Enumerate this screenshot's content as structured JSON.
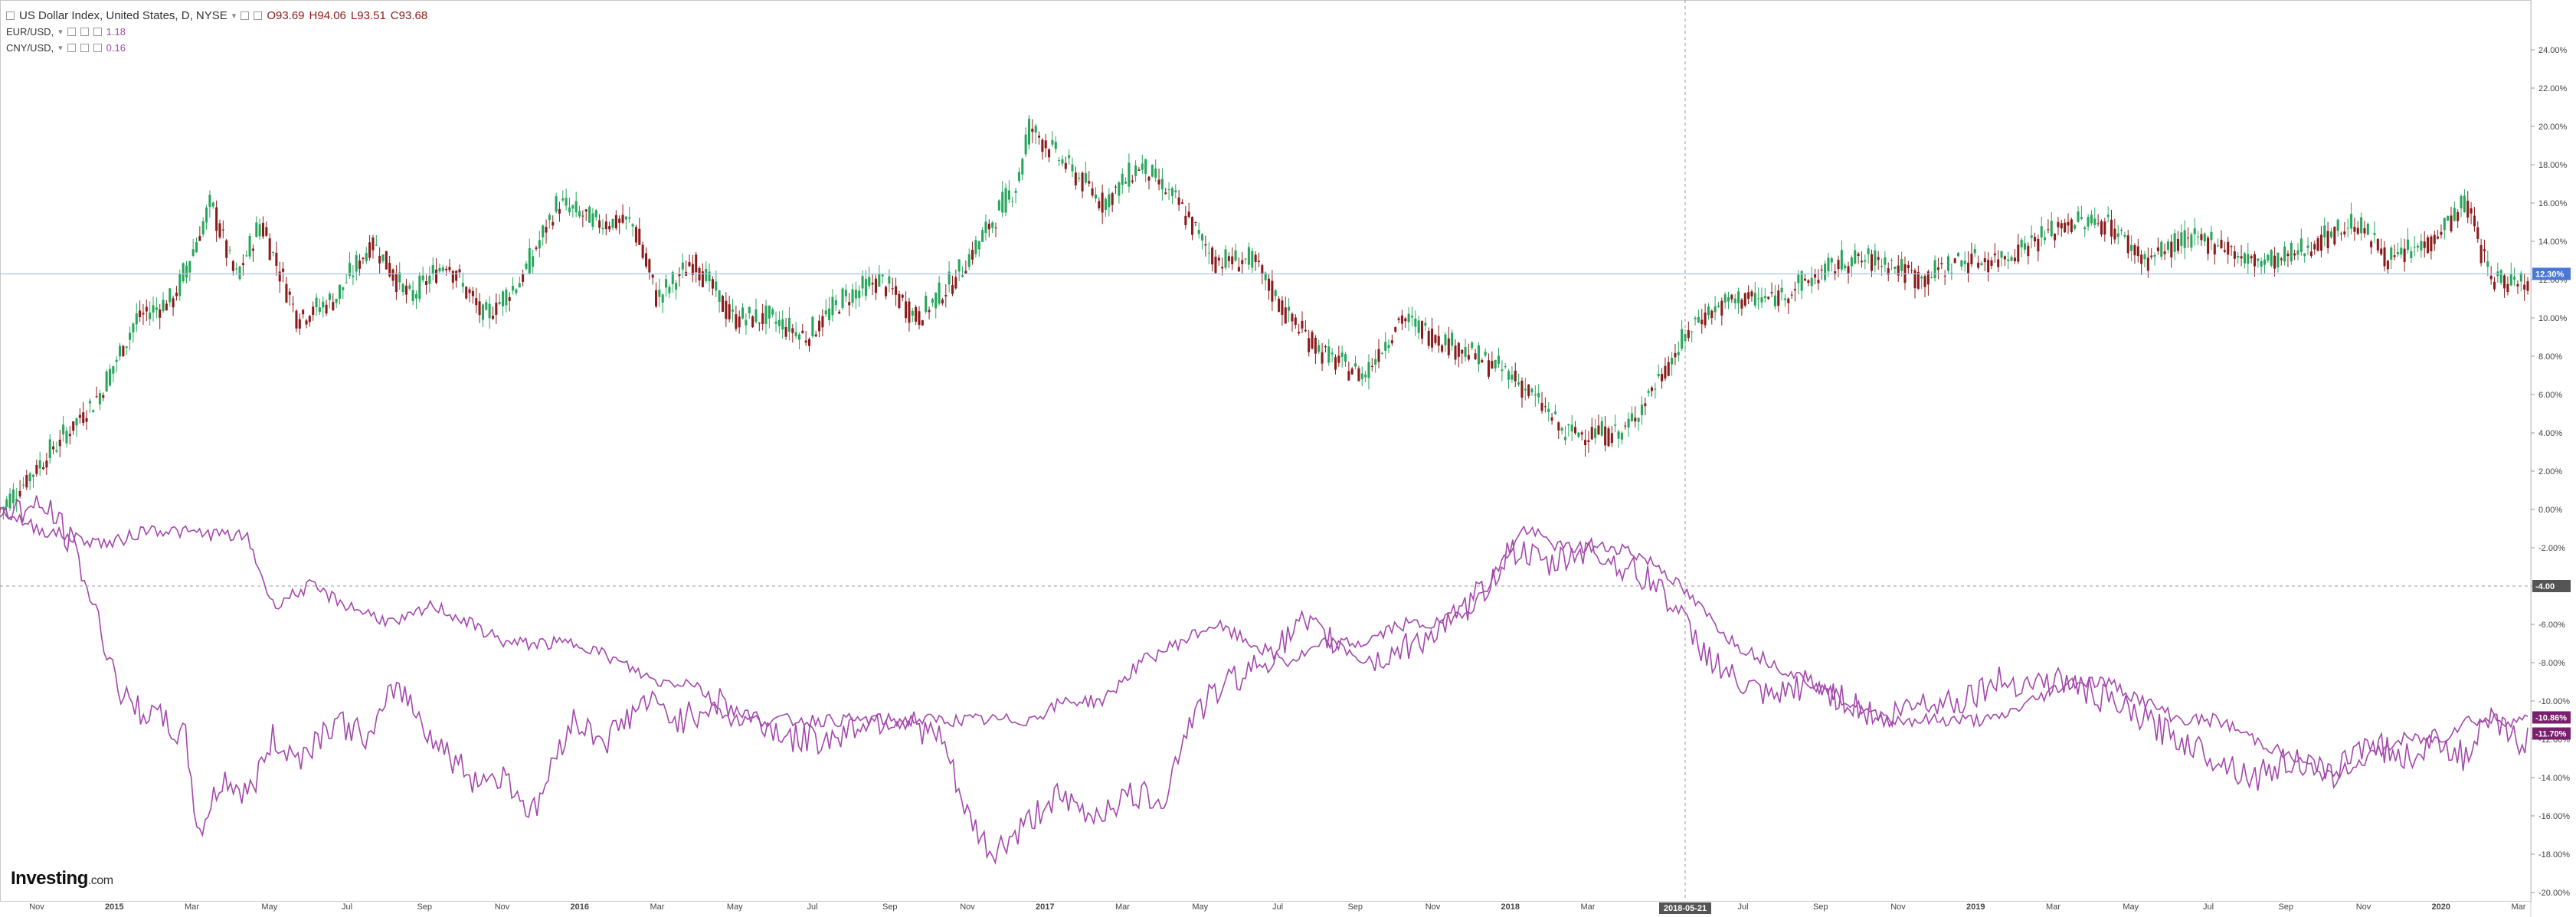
{
  "legend": {
    "main": {
      "symbol": "US Dollar Index, United States, D, NYSE",
      "open": "O93.69",
      "high": "H94.06",
      "low": "L93.51",
      "close": "C93.68"
    },
    "eur": {
      "symbol": "EUR/USD,",
      "value": "1.18"
    },
    "cny": {
      "symbol": "CNY/USD,",
      "value": "0.16"
    }
  },
  "brand": {
    "name": "Investing",
    "suffix": ".com"
  },
  "crosshair": {
    "date_label": "2018-05-21",
    "value_label": "-4.00"
  },
  "colors": {
    "up": "#26a65b",
    "down": "#8b1a1a",
    "purple": "#a447ad",
    "last_price_line": "#a9c5e6",
    "last_price_badge": "#4a78d4",
    "pct_badge": "#7a1f6e",
    "crosshair_badge": "#555555"
  },
  "chart_data": {
    "type": "line",
    "x_axis": {
      "tick_labels": [
        "Nov",
        "2015",
        "Mar",
        "May",
        "Jul",
        "Sep",
        "Nov",
        "2016",
        "Mar",
        "May",
        "Jul",
        "Sep",
        "Nov",
        "2017",
        "Mar",
        "May",
        "Jul",
        "Sep",
        "Nov",
        "2018",
        "Mar",
        "M",
        "Jul",
        "Sep",
        "Nov",
        "2019",
        "Mar",
        "May",
        "Jul",
        "Sep",
        "Nov",
        "2020",
        "Mar"
      ],
      "bold_labels": [
        "2015",
        "2016",
        "2017",
        "2018",
        "2019",
        "2020"
      ]
    },
    "y_axis": {
      "unit": "%",
      "range": [
        -20,
        24
      ],
      "tick_labels": [
        "24.00%",
        "22.00%",
        "20.00%",
        "18.00%",
        "16.00%",
        "14.00%",
        "12.00%",
        "10.00%",
        "8.00%",
        "6.00%",
        "4.00%",
        "2.00%",
        "0.00%",
        "-2.00%",
        "-4.00%",
        "-6.00%",
        "-8.00%",
        "-10.00%",
        "-12.00%",
        "-14.00%",
        "-16.00%",
        "-18.00%",
        "-20.00%"
      ],
      "tick_values": [
        24,
        22,
        20,
        18,
        16,
        14,
        12,
        10,
        8,
        6,
        4,
        2,
        0,
        -2,
        -4,
        -6,
        -8,
        -10,
        -12,
        -14,
        -16,
        -18,
        -20
      ]
    },
    "grid": false,
    "series": [
      {
        "name": "US Dollar Index, United States, D, NYSE",
        "style": "candlestick",
        "last_label": "12.30%",
        "points": [
          [
            0,
            0
          ],
          [
            4,
            3
          ],
          [
            8,
            6
          ],
          [
            11,
            10
          ],
          [
            14,
            11
          ],
          [
            17,
            16
          ],
          [
            19,
            12
          ],
          [
            21,
            15
          ],
          [
            24,
            10
          ],
          [
            27,
            11
          ],
          [
            30,
            14
          ],
          [
            33,
            11
          ],
          [
            36,
            13
          ],
          [
            39,
            10
          ],
          [
            42,
            12
          ],
          [
            45,
            16
          ],
          [
            48,
            15
          ],
          [
            51,
            15
          ],
          [
            53,
            11
          ],
          [
            56,
            13
          ],
          [
            59,
            10
          ],
          [
            62,
            10
          ],
          [
            65,
            9
          ],
          [
            68,
            11
          ],
          [
            71,
            12
          ],
          [
            74,
            10
          ],
          [
            77,
            12
          ],
          [
            80,
            15
          ],
          [
            82,
            17
          ],
          [
            83,
            20
          ],
          [
            86,
            18
          ],
          [
            89,
            16
          ],
          [
            92,
            18
          ],
          [
            95,
            16
          ],
          [
            98,
            13
          ],
          [
            101,
            13
          ],
          [
            104,
            10
          ],
          [
            107,
            8
          ],
          [
            110,
            7
          ],
          [
            113,
            10
          ],
          [
            116,
            9
          ],
          [
            119,
            8
          ],
          [
            122,
            7
          ],
          [
            125,
            5
          ],
          [
            126,
            4
          ],
          [
            128,
            4
          ],
          [
            131,
            4
          ],
          [
            134,
            7
          ],
          [
            137,
            10
          ],
          [
            140,
            11
          ],
          [
            143,
            11
          ],
          [
            146,
            12
          ],
          [
            149,
            13
          ],
          [
            152,
            13
          ],
          [
            155,
            12
          ],
          [
            158,
            13
          ],
          [
            161,
            13
          ],
          [
            164,
            14
          ],
          [
            167,
            15
          ],
          [
            170,
            15
          ],
          [
            173,
            13
          ],
          [
            176,
            14
          ],
          [
            179,
            14
          ],
          [
            181,
            13
          ],
          [
            184,
            13
          ],
          [
            187,
            14
          ],
          [
            190,
            15
          ],
          [
            193,
            13
          ],
          [
            196,
            14
          ],
          [
            199,
            16
          ],
          [
            201,
            12
          ],
          [
            203,
            12
          ]
        ]
      },
      {
        "name": "EUR/USD",
        "style": "line",
        "last_label": "-10.86%",
        "points": [
          [
            0,
            0
          ],
          [
            3,
            -1
          ],
          [
            6,
            -1.5
          ],
          [
            9,
            -1.8
          ],
          [
            12,
            -1
          ],
          [
            15,
            -1.2
          ],
          [
            18,
            -1.3
          ],
          [
            20,
            -1.5
          ],
          [
            22,
            -5
          ],
          [
            25,
            -4
          ],
          [
            28,
            -5
          ],
          [
            32,
            -6
          ],
          [
            35,
            -5
          ],
          [
            38,
            -6
          ],
          [
            41,
            -7
          ],
          [
            44,
            -7
          ],
          [
            47,
            -7
          ],
          [
            50,
            -8
          ],
          [
            53,
            -9
          ],
          [
            56,
            -9
          ],
          [
            59,
            -11
          ],
          [
            62,
            -11
          ],
          [
            65,
            -11
          ],
          [
            68,
            -11
          ],
          [
            71,
            -11
          ],
          [
            74,
            -11
          ],
          [
            77,
            -11
          ],
          [
            80,
            -11
          ],
          [
            83,
            -11
          ],
          [
            86,
            -10
          ],
          [
            89,
            -10
          ],
          [
            92,
            -8
          ],
          [
            95,
            -7
          ],
          [
            98,
            -6
          ],
          [
            101,
            -7
          ],
          [
            104,
            -8
          ],
          [
            107,
            -7
          ],
          [
            110,
            -7
          ],
          [
            113,
            -6
          ],
          [
            116,
            -6
          ],
          [
            119,
            -5
          ],
          [
            121,
            -3
          ],
          [
            123,
            -1
          ],
          [
            126,
            -2
          ],
          [
            128,
            -2
          ],
          [
            131,
            -2
          ],
          [
            134,
            -3
          ],
          [
            137,
            -5
          ],
          [
            140,
            -7
          ],
          [
            143,
            -8
          ],
          [
            146,
            -9
          ],
          [
            149,
            -10
          ],
          [
            152,
            -11
          ],
          [
            155,
            -11
          ],
          [
            158,
            -11
          ],
          [
            161,
            -11
          ],
          [
            164,
            -10
          ],
          [
            167,
            -9
          ],
          [
            170,
            -9
          ],
          [
            173,
            -10
          ],
          [
            176,
            -11
          ],
          [
            179,
            -11
          ],
          [
            182,
            -12
          ],
          [
            185,
            -13
          ],
          [
            188,
            -14
          ],
          [
            191,
            -13
          ],
          [
            194,
            -12
          ],
          [
            197,
            -12
          ],
          [
            199,
            -11
          ],
          [
            201,
            -11
          ],
          [
            203,
            -11
          ]
        ]
      },
      {
        "name": "CNY/USD",
        "style": "line",
        "last_label": "-11.70%",
        "points": [
          [
            0,
            0
          ],
          [
            4,
            0
          ],
          [
            6,
            -2
          ],
          [
            8,
            -6
          ],
          [
            10,
            -10
          ],
          [
            13,
            -11
          ],
          [
            15,
            -12
          ],
          [
            16,
            -17
          ],
          [
            18,
            -14
          ],
          [
            20,
            -15
          ],
          [
            22,
            -12
          ],
          [
            24,
            -13
          ],
          [
            27,
            -11
          ],
          [
            30,
            -12
          ],
          [
            32,
            -9
          ],
          [
            35,
            -12
          ],
          [
            38,
            -14
          ],
          [
            41,
            -14
          ],
          [
            43,
            -16
          ],
          [
            46,
            -11
          ],
          [
            49,
            -12
          ],
          [
            52,
            -10
          ],
          [
            55,
            -11
          ],
          [
            58,
            -10
          ],
          [
            61,
            -11
          ],
          [
            64,
            -12
          ],
          [
            67,
            -12
          ],
          [
            70,
            -11
          ],
          [
            73,
            -11
          ],
          [
            76,
            -12
          ],
          [
            78,
            -16
          ],
          [
            80,
            -18
          ],
          [
            82,
            -17
          ],
          [
            85,
            -15
          ],
          [
            88,
            -16
          ],
          [
            91,
            -15
          ],
          [
            94,
            -15
          ],
          [
            96,
            -11
          ],
          [
            99,
            -9
          ],
          [
            102,
            -8
          ],
          [
            105,
            -6
          ],
          [
            108,
            -7
          ],
          [
            111,
            -8
          ],
          [
            114,
            -7
          ],
          [
            117,
            -6
          ],
          [
            120,
            -4
          ],
          [
            122,
            -2
          ],
          [
            125,
            -3
          ],
          [
            128,
            -2
          ],
          [
            131,
            -3
          ],
          [
            134,
            -4
          ],
          [
            137,
            -7
          ],
          [
            140,
            -9
          ],
          [
            143,
            -10
          ],
          [
            146,
            -9
          ],
          [
            149,
            -10
          ],
          [
            152,
            -11
          ],
          [
            155,
            -10
          ],
          [
            158,
            -10
          ],
          [
            161,
            -9
          ],
          [
            164,
            -9
          ],
          [
            167,
            -9
          ],
          [
            170,
            -10
          ],
          [
            173,
            -11
          ],
          [
            176,
            -12
          ],
          [
            179,
            -13
          ],
          [
            182,
            -14
          ],
          [
            185,
            -13
          ],
          [
            188,
            -14
          ],
          [
            191,
            -12
          ],
          [
            194,
            -13
          ],
          [
            197,
            -12
          ],
          [
            199,
            -13
          ],
          [
            201,
            -11
          ],
          [
            203,
            -12
          ]
        ]
      }
    ]
  }
}
